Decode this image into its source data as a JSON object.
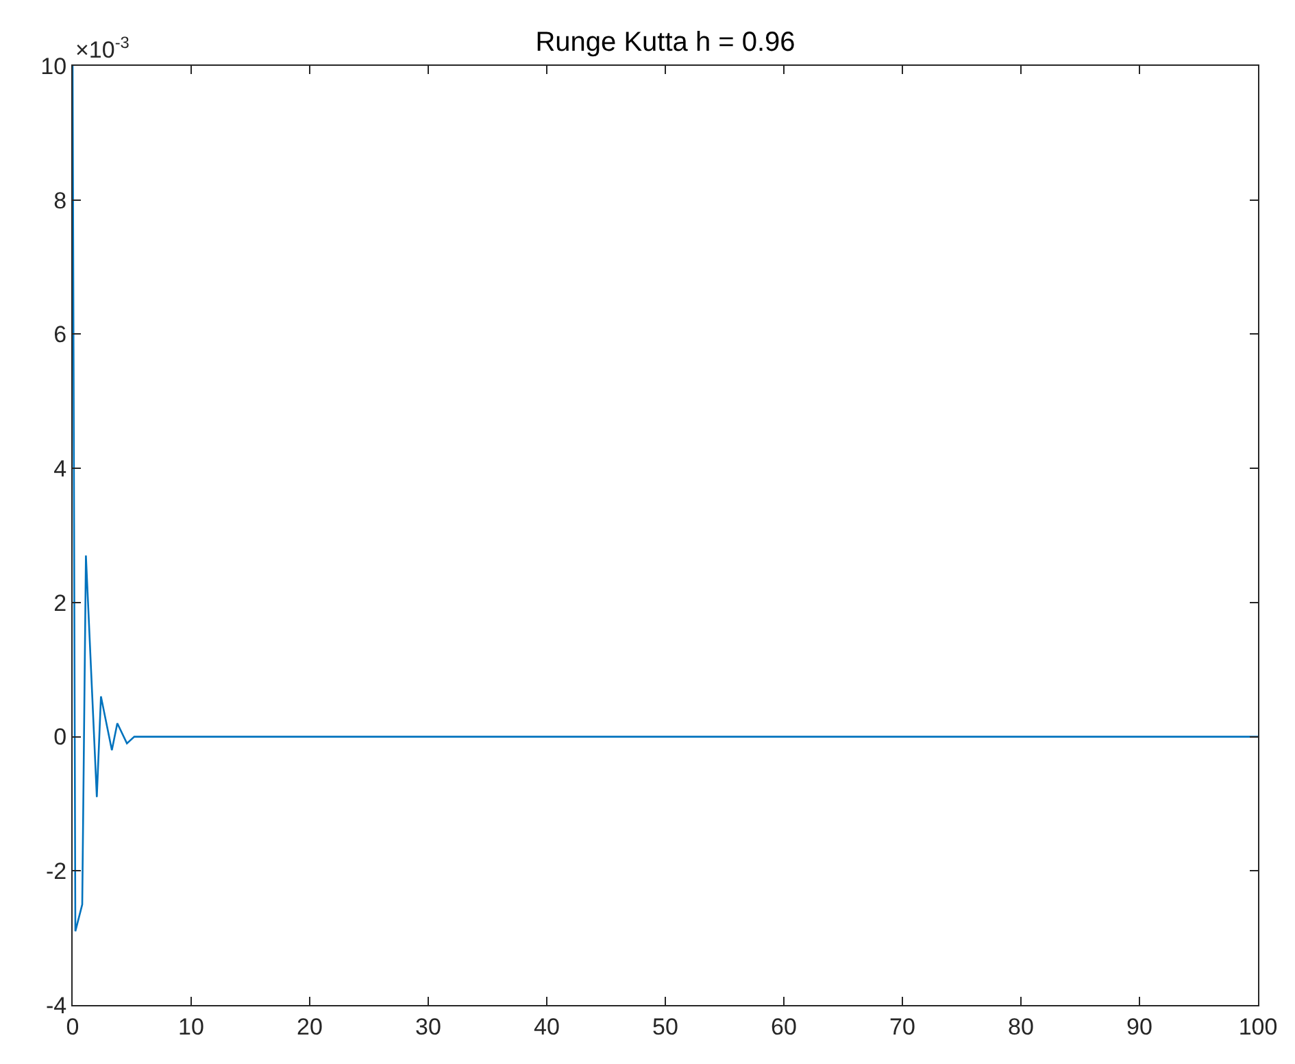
{
  "chart_data": {
    "type": "line",
    "title": "Runge Kutta h = 0.96",
    "annotations": [
      "×10$^{-3}$"
    ],
    "x": [
      0,
      0.23,
      0.81,
      1.12,
      2.04,
      2.39,
      3.31,
      3.77,
      4.58,
      5.2,
      6,
      8,
      12,
      17,
      30,
      50,
      100
    ],
    "series": [
      {
        "color": "#0072bd",
        "values": [
          10,
          -2.9,
          -2.5,
          2.7,
          -0.9,
          0.6,
          -0.2,
          0.2,
          -0.1,
          0,
          0,
          0,
          0,
          0,
          0,
          0,
          0
        ]
      }
    ],
    "xlim": [
      0,
      100
    ],
    "xticks": [
      0,
      10,
      20,
      30,
      40,
      50,
      60,
      70,
      80,
      90,
      100
    ],
    "ylim": [
      -4,
      10
    ],
    "yticks": [
      -4,
      -2,
      0,
      2,
      4,
      6,
      8,
      10
    ],
    "marker": "none",
    "line_style": "solid"
  }
}
